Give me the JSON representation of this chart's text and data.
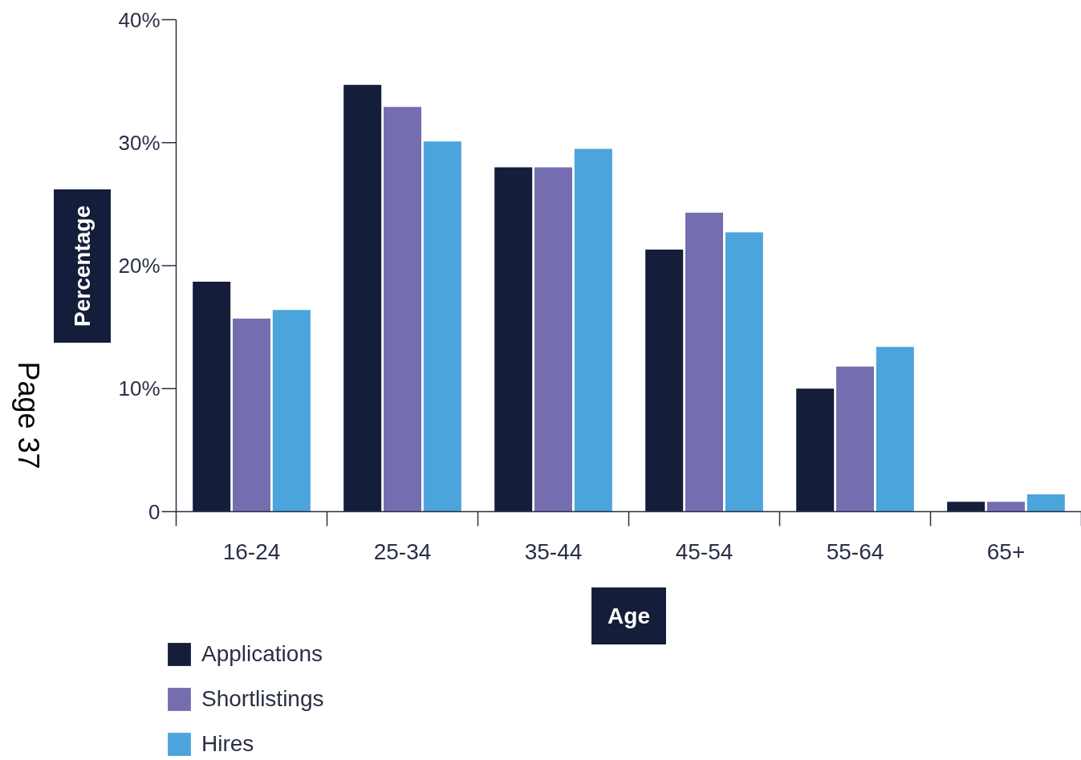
{
  "chart_data": {
    "type": "bar",
    "categories": [
      "16-24",
      "25-34",
      "35-44",
      "45-54",
      "55-64",
      "65+"
    ],
    "series": [
      {
        "name": "Applications",
        "color": "#141d3a",
        "values": [
          18.7,
          34.7,
          28.0,
          21.3,
          10.0,
          0.8
        ]
      },
      {
        "name": "Shortlistings",
        "color": "#746eb0",
        "values": [
          15.7,
          32.9,
          28.0,
          24.3,
          11.8,
          0.8
        ]
      },
      {
        "name": "Hires",
        "color": "#4ba4dc",
        "values": [
          16.4,
          30.1,
          29.5,
          22.7,
          13.4,
          1.4
        ]
      }
    ],
    "xlabel": "Age",
    "ylabel": "Percentage",
    "ylim": [
      0,
      40
    ],
    "yticks": [
      {
        "value": 0,
        "label": "0"
      },
      {
        "value": 10,
        "label": "10%"
      },
      {
        "value": 20,
        "label": "20%"
      },
      {
        "value": 30,
        "label": "30%"
      },
      {
        "value": 40,
        "label": "40%"
      }
    ],
    "annotations": [
      "Page 37"
    ],
    "grid": false,
    "legend": "bottom left"
  }
}
